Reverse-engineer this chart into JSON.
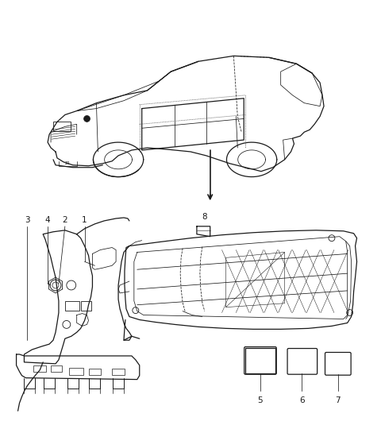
{
  "background_color": "#ffffff",
  "line_color": "#1a1a1a",
  "label_color": "#1a1a1a",
  "fig_width": 4.8,
  "fig_height": 5.45,
  "dpi": 100,
  "label_fontsize": 7.5,
  "arrow_color": "#1a1a1a"
}
